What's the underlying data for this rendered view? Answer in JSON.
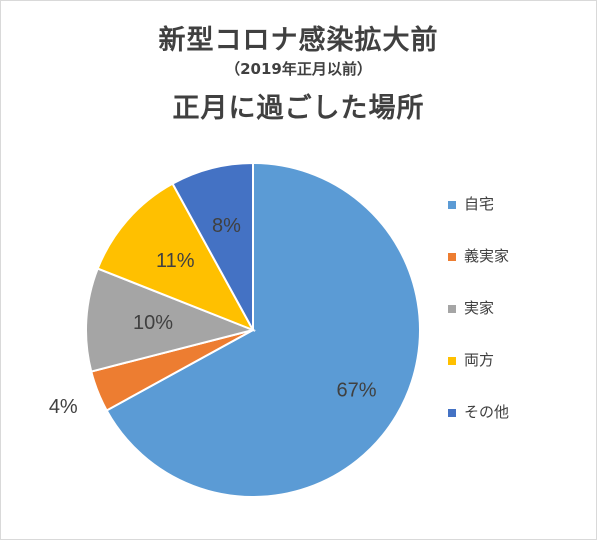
{
  "title": {
    "line1": "新型コロナ感染拡大前",
    "line2": "（2019年正月以前）",
    "line3": "正月に過ごした場所"
  },
  "chart_data": {
    "type": "pie",
    "title": "新型コロナ感染拡大前（2019年正月以前）正月に過ごした場所",
    "start_angle_deg": 0,
    "direction": "clockwise",
    "legend_position": "right",
    "slices": [
      {
        "name": "自宅",
        "value": 67,
        "label": "67%",
        "color": "#5b9bd5"
      },
      {
        "name": "義実家",
        "value": 4,
        "label": "4%",
        "color": "#ed7d31"
      },
      {
        "name": "実家",
        "value": 10,
        "label": "10%",
        "color": "#a5a5a5"
      },
      {
        "name": "両方",
        "value": 11,
        "label": "11%",
        "color": "#ffc000"
      },
      {
        "name": "その他",
        "value": 8,
        "label": "8%",
        "color": "#4472c4"
      }
    ]
  }
}
